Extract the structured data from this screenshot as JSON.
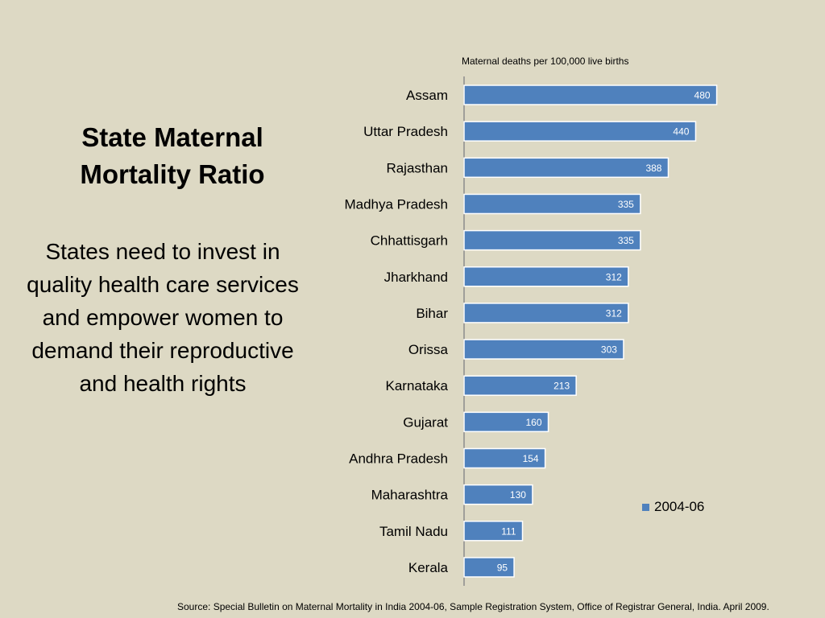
{
  "slide": {
    "title_line1": "State Maternal",
    "title_line2": "Mortality Ratio",
    "subtitle_lines": [
      "States need to invest in",
      "quality health care services",
      "and empower women to",
      "demand their reproductive",
      "and health rights"
    ],
    "source": "Source: Special Bulletin on Maternal Mortality in India 2004-06, Sample Registration System, Office of Registrar General, India. April 2009."
  },
  "colors": {
    "background": "#ddd9c4",
    "bar": "#4f81bd",
    "bar_border": "#ffffff",
    "axis": "#8c8c8c"
  },
  "chart_data": {
    "type": "bar",
    "orientation": "horizontal",
    "xlabel": "Maternal deaths per 100,000 live births",
    "categories": [
      "Assam",
      "Uttar Pradesh",
      "Rajasthan",
      "Madhya Pradesh",
      "Chhattisgarh",
      "Jharkhand",
      "Bihar",
      "Orissa",
      "Karnataka",
      "Gujarat",
      "Andhra Pradesh",
      "Maharashtra",
      "Tamil Nadu",
      "Kerala"
    ],
    "series": [
      {
        "name": "2004-06",
        "values": [
          480,
          440,
          388,
          335,
          335,
          312,
          312,
          303,
          213,
          160,
          154,
          130,
          111,
          95
        ]
      }
    ],
    "data_labels": true,
    "grid": false,
    "legend_position": "bottom-right"
  }
}
